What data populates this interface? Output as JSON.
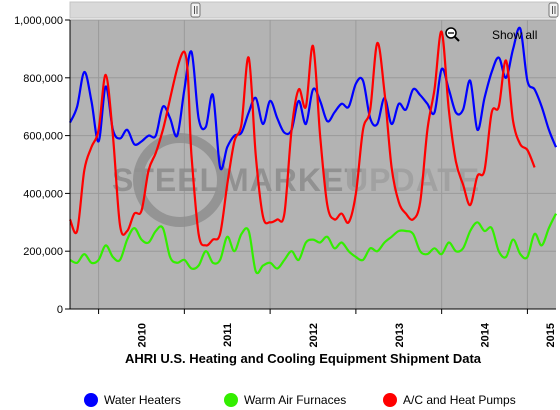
{
  "chart_data": {
    "type": "line",
    "title": "AHRI U.S. Heating and Cooling Equipment Shipment Data",
    "x_ticks": [
      "2010",
      "2011",
      "2012",
      "2013",
      "2014",
      "2015"
    ],
    "y_ticks": [
      "0",
      "200,000",
      "400,000",
      "600,000",
      "800,000",
      "1,000,000"
    ],
    "ylim": [
      0,
      1000000
    ],
    "x_range": [
      "2009-09",
      "2015-05"
    ],
    "grid": true,
    "legend_position": "bottom",
    "series": [
      {
        "name": "Water Heaters",
        "color": "#0000ff",
        "values": [
          [
            "2009-09",
            645000
          ],
          [
            "2009-10",
            700000
          ],
          [
            "2009-11",
            820000
          ],
          [
            "2009-12",
            720000
          ],
          [
            "2010-01",
            580000
          ],
          [
            "2010-02",
            770000
          ],
          [
            "2010-03",
            620000
          ],
          [
            "2010-04",
            590000
          ],
          [
            "2010-05",
            620000
          ],
          [
            "2010-06",
            570000
          ],
          [
            "2010-07",
            580000
          ],
          [
            "2010-08",
            600000
          ],
          [
            "2010-09",
            600000
          ],
          [
            "2010-10",
            700000
          ],
          [
            "2010-11",
            660000
          ],
          [
            "2010-12",
            600000
          ],
          [
            "2011-01",
            760000
          ],
          [
            "2011-02",
            890000
          ],
          [
            "2011-03",
            660000
          ],
          [
            "2011-04",
            630000
          ],
          [
            "2011-05",
            740000
          ],
          [
            "2011-06",
            490000
          ],
          [
            "2011-07",
            560000
          ],
          [
            "2011-08",
            600000
          ],
          [
            "2011-09",
            610000
          ],
          [
            "2011-10",
            680000
          ],
          [
            "2011-11",
            730000
          ],
          [
            "2011-12",
            640000
          ],
          [
            "2012-01",
            720000
          ],
          [
            "2012-02",
            660000
          ],
          [
            "2012-03",
            610000
          ],
          [
            "2012-04",
            620000
          ],
          [
            "2012-05",
            720000
          ],
          [
            "2012-06",
            640000
          ],
          [
            "2012-07",
            760000
          ],
          [
            "2012-08",
            720000
          ],
          [
            "2012-09",
            650000
          ],
          [
            "2012-10",
            680000
          ],
          [
            "2012-11",
            710000
          ],
          [
            "2012-12",
            700000
          ],
          [
            "2013-01",
            780000
          ],
          [
            "2013-02",
            790000
          ],
          [
            "2013-03",
            660000
          ],
          [
            "2013-04",
            640000
          ],
          [
            "2013-05",
            730000
          ],
          [
            "2013-06",
            640000
          ],
          [
            "2013-07",
            710000
          ],
          [
            "2013-08",
            690000
          ],
          [
            "2013-09",
            760000
          ],
          [
            "2013-10",
            740000
          ],
          [
            "2013-11",
            710000
          ],
          [
            "2013-12",
            680000
          ],
          [
            "2014-01",
            830000
          ],
          [
            "2014-02",
            760000
          ],
          [
            "2014-03",
            680000
          ],
          [
            "2014-04",
            690000
          ],
          [
            "2014-05",
            790000
          ],
          [
            "2014-06",
            620000
          ],
          [
            "2014-07",
            730000
          ],
          [
            "2014-08",
            820000
          ],
          [
            "2014-09",
            870000
          ],
          [
            "2014-10",
            800000
          ],
          [
            "2014-11",
            900000
          ],
          [
            "2014-12",
            970000
          ],
          [
            "2015-01",
            790000
          ],
          [
            "2015-02",
            760000
          ],
          [
            "2015-03",
            700000
          ],
          [
            "2015-04",
            620000
          ],
          [
            "2015-05",
            560000
          ]
        ]
      },
      {
        "name": "Warm Air Furnaces",
        "color": "#33ee00",
        "values": [
          [
            "2009-09",
            170000
          ],
          [
            "2009-10",
            160000
          ],
          [
            "2009-11",
            190000
          ],
          [
            "2009-12",
            160000
          ],
          [
            "2010-01",
            170000
          ],
          [
            "2010-02",
            220000
          ],
          [
            "2010-03",
            180000
          ],
          [
            "2010-04",
            170000
          ],
          [
            "2010-05",
            240000
          ],
          [
            "2010-06",
            280000
          ],
          [
            "2010-07",
            240000
          ],
          [
            "2010-08",
            230000
          ],
          [
            "2010-09",
            270000
          ],
          [
            "2010-10",
            280000
          ],
          [
            "2010-11",
            180000
          ],
          [
            "2010-12",
            160000
          ],
          [
            "2011-01",
            170000
          ],
          [
            "2011-02",
            140000
          ],
          [
            "2011-03",
            150000
          ],
          [
            "2011-04",
            200000
          ],
          [
            "2011-05",
            160000
          ],
          [
            "2011-06",
            170000
          ],
          [
            "2011-07",
            250000
          ],
          [
            "2011-08",
            200000
          ],
          [
            "2011-09",
            260000
          ],
          [
            "2011-10",
            270000
          ],
          [
            "2011-11",
            130000
          ],
          [
            "2011-12",
            150000
          ],
          [
            "2012-01",
            160000
          ],
          [
            "2012-02",
            140000
          ],
          [
            "2012-03",
            170000
          ],
          [
            "2012-04",
            200000
          ],
          [
            "2012-05",
            170000
          ],
          [
            "2012-06",
            230000
          ],
          [
            "2012-07",
            240000
          ],
          [
            "2012-08",
            230000
          ],
          [
            "2012-09",
            250000
          ],
          [
            "2012-10",
            210000
          ],
          [
            "2012-11",
            230000
          ],
          [
            "2012-12",
            200000
          ],
          [
            "2013-01",
            180000
          ],
          [
            "2013-02",
            170000
          ],
          [
            "2013-03",
            210000
          ],
          [
            "2013-04",
            200000
          ],
          [
            "2013-05",
            230000
          ],
          [
            "2013-06",
            250000
          ],
          [
            "2013-07",
            270000
          ],
          [
            "2013-08",
            270000
          ],
          [
            "2013-09",
            260000
          ],
          [
            "2013-10",
            200000
          ],
          [
            "2013-11",
            190000
          ],
          [
            "2013-12",
            210000
          ],
          [
            "2014-01",
            190000
          ],
          [
            "2014-02",
            230000
          ],
          [
            "2014-03",
            200000
          ],
          [
            "2014-04",
            210000
          ],
          [
            "2014-05",
            270000
          ],
          [
            "2014-06",
            300000
          ],
          [
            "2014-07",
            270000
          ],
          [
            "2014-08",
            280000
          ],
          [
            "2014-09",
            200000
          ],
          [
            "2014-10",
            180000
          ],
          [
            "2014-11",
            240000
          ],
          [
            "2014-12",
            190000
          ],
          [
            "2015-01",
            180000
          ],
          [
            "2015-02",
            260000
          ],
          [
            "2015-03",
            220000
          ],
          [
            "2015-04",
            280000
          ],
          [
            "2015-05",
            330000
          ]
        ]
      },
      {
        "name": "A/C and Heat Pumps",
        "color": "#ff0000",
        "values": [
          [
            "2009-09",
            310000
          ],
          [
            "2009-10",
            270000
          ],
          [
            "2009-11",
            480000
          ],
          [
            "2009-12",
            560000
          ],
          [
            "2010-01",
            620000
          ],
          [
            "2010-02",
            810000
          ],
          [
            "2010-03",
            600000
          ],
          [
            "2010-04",
            290000
          ],
          [
            "2010-05",
            270000
          ],
          [
            "2010-06",
            330000
          ],
          [
            "2010-07",
            340000
          ],
          [
            "2010-08",
            480000
          ],
          [
            "2010-09",
            540000
          ],
          [
            "2010-10",
            620000
          ],
          [
            "2011-01",
            890000
          ],
          [
            "2011-02",
            530000
          ],
          [
            "2011-03",
            260000
          ],
          [
            "2011-04",
            220000
          ],
          [
            "2011-05",
            240000
          ],
          [
            "2011-06",
            260000
          ],
          [
            "2011-07",
            430000
          ],
          [
            "2011-08",
            580000
          ],
          [
            "2011-09",
            640000
          ],
          [
            "2011-10",
            870000
          ],
          [
            "2011-11",
            530000
          ],
          [
            "2011-12",
            320000
          ],
          [
            "2012-01",
            300000
          ],
          [
            "2012-02",
            310000
          ],
          [
            "2012-03",
            330000
          ],
          [
            "2012-04",
            620000
          ],
          [
            "2012-05",
            760000
          ],
          [
            "2012-06",
            700000
          ],
          [
            "2012-07",
            910000
          ],
          [
            "2012-08",
            600000
          ],
          [
            "2012-09",
            360000
          ],
          [
            "2012-10",
            310000
          ],
          [
            "2012-11",
            330000
          ],
          [
            "2012-12",
            300000
          ],
          [
            "2013-01",
            400000
          ],
          [
            "2013-02",
            620000
          ],
          [
            "2013-03",
            690000
          ],
          [
            "2013-04",
            920000
          ],
          [
            "2013-05",
            750000
          ],
          [
            "2013-06",
            490000
          ],
          [
            "2013-07",
            370000
          ],
          [
            "2013-08",
            330000
          ],
          [
            "2013-09",
            310000
          ],
          [
            "2013-10",
            370000
          ],
          [
            "2013-11",
            620000
          ],
          [
            "2013-12",
            760000
          ],
          [
            "2014-01",
            960000
          ],
          [
            "2014-02",
            690000
          ],
          [
            "2014-03",
            510000
          ],
          [
            "2014-04",
            430000
          ],
          [
            "2014-05",
            360000
          ],
          [
            "2014-06",
            460000
          ],
          [
            "2014-07",
            480000
          ],
          [
            "2014-08",
            680000
          ],
          [
            "2014-09",
            700000
          ],
          [
            "2014-10",
            860000
          ],
          [
            "2014-11",
            650000
          ],
          [
            "2014-12",
            570000
          ],
          [
            "2015-01",
            550000
          ],
          [
            "2015-02",
            490000
          ]
        ]
      }
    ]
  },
  "toolbar": {
    "show_all_label": "Show all",
    "show_all_icon": "magnifier-minus-icon"
  },
  "watermark": {
    "part1": "STEEL",
    "part2": "MARKET",
    "part3": "UPDATE"
  },
  "colors": {
    "plot_background": "#b3b3b3",
    "grid": "#9a9a9a",
    "scrollbar": "#d9d9d9"
  }
}
